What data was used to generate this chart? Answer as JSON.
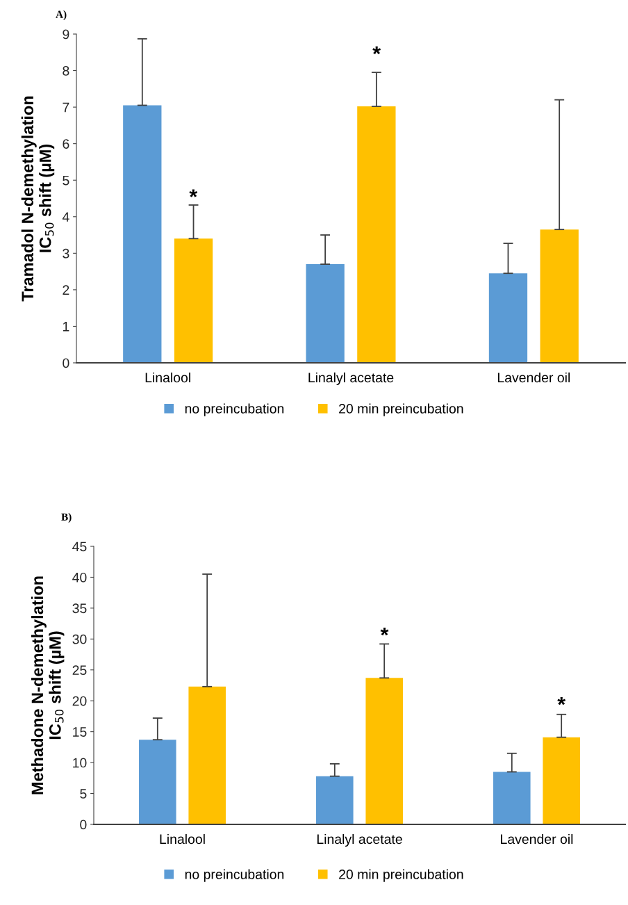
{
  "chart_data": [
    {
      "type": "bar",
      "title": "A)",
      "ylabel": "Tramadol N-demethylation\nIC$_{50}$ shift (µM)",
      "categories": [
        "Linalool",
        "Linalyl acetate",
        "Lavender oil"
      ],
      "series": [
        {
          "name": "no preincubation",
          "color": "#5b9bd5",
          "values": [
            7.05,
            2.7,
            2.45
          ],
          "errors": [
            [
              7.05,
              8.87
            ],
            [
              2.7,
              3.5
            ],
            [
              2.45,
              3.27
            ]
          ]
        },
        {
          "name": "20 min preincubation",
          "color": "#ffc000",
          "values": [
            3.4,
            7.02,
            3.65
          ],
          "errors": [
            [
              3.4,
              4.32
            ],
            [
              7.02,
              7.95
            ],
            [
              3.65,
              7.2
            ]
          ]
        }
      ],
      "ylim": [
        0,
        9
      ],
      "yticks": [
        0,
        1,
        2,
        3,
        4,
        5,
        6,
        7,
        8,
        9
      ],
      "legend": "bottom",
      "grid": false,
      "annotations": [
        "*",
        "*"
      ]
    },
    {
      "type": "bar",
      "title": "B)",
      "ylabel": "Methadone N-demethylation\nIC$_{50}$ shift (µM)",
      "categories": [
        "Linalool",
        "Linalyl acetate",
        "Lavender oil"
      ],
      "series": [
        {
          "name": "no preincubation",
          "color": "#5b9bd5",
          "values": [
            13.7,
            7.8,
            8.5
          ],
          "errors": [
            [
              13.7,
              17.2
            ],
            [
              7.8,
              9.8
            ],
            [
              8.5,
              11.5
            ]
          ]
        },
        {
          "name": "20 min preincubation",
          "color": "#ffc000",
          "values": [
            22.3,
            23.7,
            14.1
          ],
          "errors": [
            [
              22.3,
              40.5
            ],
            [
              23.7,
              29.2
            ],
            [
              14.1,
              17.8
            ]
          ]
        }
      ],
      "ylim": [
        0,
        45
      ],
      "yticks": [
        0,
        5,
        10,
        15,
        20,
        25,
        30,
        35,
        40,
        45
      ],
      "legend": "bottom",
      "grid": false,
      "annotations": [
        "*",
        "*"
      ]
    }
  ]
}
